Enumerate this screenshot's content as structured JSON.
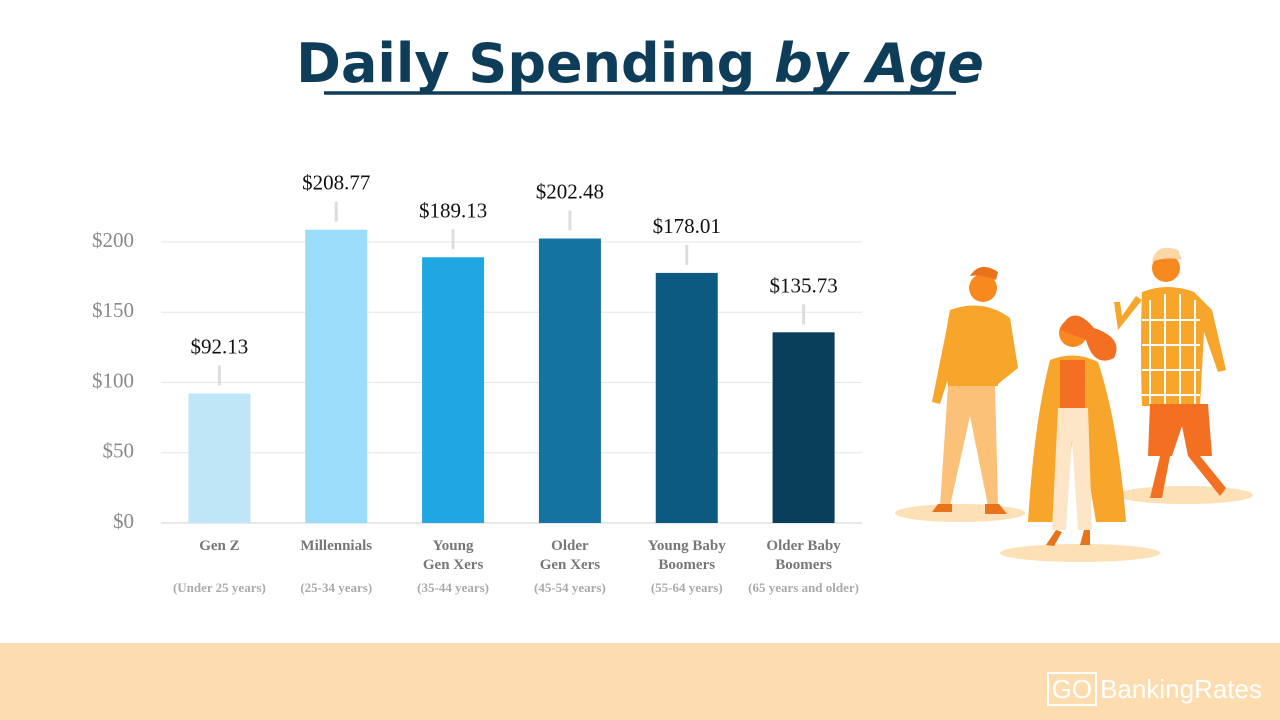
{
  "chart_data": {
    "type": "bar",
    "title": "Daily Spending",
    "title_emphasis": "by Age",
    "categories": [
      "Gen Z",
      "Millennials",
      "Young\nGen Xers",
      "Older\nGen Xers",
      "Young Baby\nBoomers",
      "Older Baby\nBoomers"
    ],
    "category_notes": [
      "(Under 25 years)",
      "(25-34 years)",
      "(35-44 years)",
      "(45-54 years)",
      "(55-64 years)",
      "(65 years and older)"
    ],
    "values": [
      92.13,
      208.77,
      189.13,
      202.48,
      178.01,
      135.73
    ],
    "value_labels": [
      "$92.13",
      "$208.77",
      "$189.13",
      "$202.48",
      "$178.01",
      "$135.73"
    ],
    "colors": [
      "#bfe6f6",
      "#9adcfa",
      "#1fa7e2",
      "#1473a0",
      "#0d5a80",
      "#093f5a"
    ],
    "ylim": [
      0,
      200
    ],
    "yticks": [
      {
        "value": 0,
        "label": "$0"
      },
      {
        "value": 50,
        "label": "$50"
      },
      {
        "value": 100,
        "label": "$100"
      },
      {
        "value": 150,
        "label": "$150"
      },
      {
        "value": 200,
        "label": "$200"
      }
    ],
    "grid": true
  },
  "footer": {
    "logo_mark": "GO",
    "logo_name": "BankingRates"
  }
}
